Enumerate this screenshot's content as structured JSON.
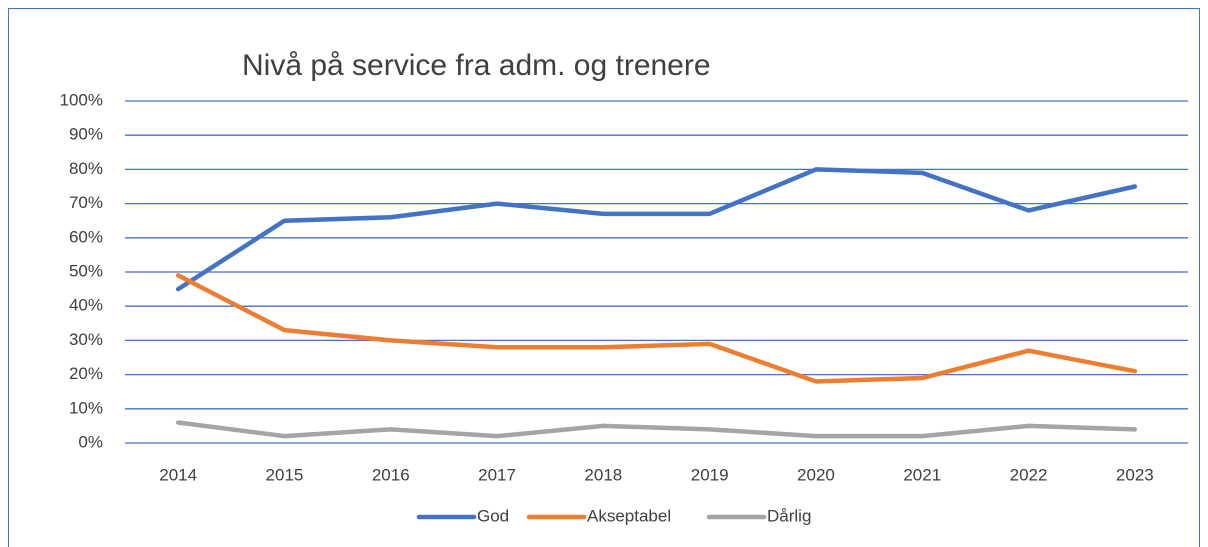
{
  "chart_data": {
    "type": "line",
    "title": "Nivå på service fra adm. og trenere",
    "categories": [
      "2014",
      "2015",
      "2016",
      "2017",
      "2018",
      "2019",
      "2020",
      "2021",
      "2022",
      "2023"
    ],
    "series": [
      {
        "name": "God",
        "color": "#4472c4",
        "values": [
          45,
          65,
          66,
          70,
          67,
          67,
          80,
          79,
          68,
          75
        ]
      },
      {
        "name": "Akseptabel",
        "color": "#ed7d31",
        "values": [
          49,
          33,
          30,
          28,
          28,
          29,
          18,
          19,
          27,
          21
        ]
      },
      {
        "name": "Dårlig",
        "color": "#a5a5a5",
        "values": [
          6,
          2,
          4,
          2,
          5,
          4,
          2,
          2,
          5,
          4
        ]
      }
    ],
    "ylim": [
      0,
      100
    ],
    "yticks": [
      {
        "value": 0,
        "label": "0%"
      },
      {
        "value": 10,
        "label": "10%"
      },
      {
        "value": 20,
        "label": "20%"
      },
      {
        "value": 30,
        "label": "30%"
      },
      {
        "value": 40,
        "label": "40%"
      },
      {
        "value": 50,
        "label": "50%"
      },
      {
        "value": 60,
        "label": "60%"
      },
      {
        "value": 70,
        "label": "70%"
      },
      {
        "value": 80,
        "label": "80%"
      },
      {
        "value": 90,
        "label": "90%"
      },
      {
        "value": 100,
        "label": "100%"
      }
    ],
    "grid": true,
    "legend": "bottom"
  }
}
